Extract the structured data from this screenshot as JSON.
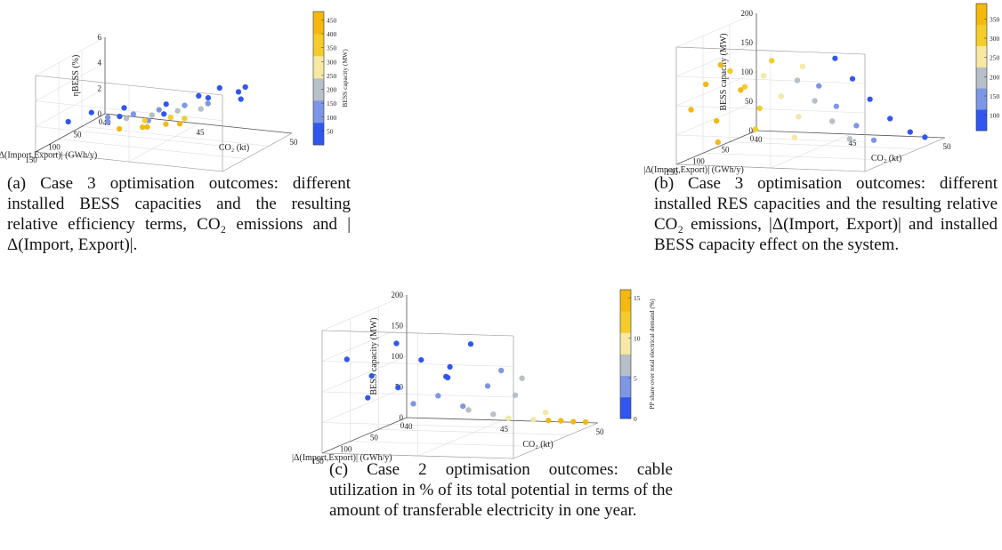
{
  "figure": {
    "captions": {
      "a": "(a) Case 3 optimisation outcomes: different installed BESS capacities and the resulting relative efficiency terms, CO₂ emissions and |Δ(Import, Export)|.",
      "b": "(b) Case 3 optimisation outcomes: different installed RES capacities and the resulting relative CO₂ emissions, |Δ(Import, Export)| and installed BESS capacity effect on the system.",
      "c": "(c) Case 2 optimisation outcomes: cable utilization in % of its total potential in terms of the amount of transferable electricity in one year."
    }
  },
  "palette": {
    "blue": "#2f57f0",
    "midblue": "#7d97e6",
    "grey": "#b7bfc8",
    "lightyellow": "#f7e9a4",
    "yellow": "#f6cc2a",
    "gold": "#f4b90c"
  },
  "chart_data": [
    {
      "id": "a",
      "type": "scatter",
      "dimensions": 3,
      "xlabel": "CO₂ (kt)",
      "ylabel": "|Δ(Import,Export)| (GWh/y)",
      "zlabel": "ηBESS (%)",
      "x_ticks": [
        "40",
        "45",
        "50"
      ],
      "y_ticks": [
        "0",
        "50",
        "100",
        "150"
      ],
      "z_ticks": [
        "0",
        "2",
        "4",
        "6"
      ],
      "xlim": [
        40,
        50
      ],
      "ylim": [
        0,
        150
      ],
      "zlim": [
        0,
        6
      ],
      "colorbar": {
        "label": "BESS capacity (MW)",
        "ticks": [
          "50",
          "100",
          "150",
          "200",
          "250",
          "300",
          "350",
          "400",
          "450"
        ],
        "range": [
          0,
          480
        ]
      },
      "groups": [
        {
          "color_value": 40,
          "points": [
            [
              42.0,
              110,
              2.6
            ],
            [
              43.5,
              100,
              3.0
            ],
            [
              45.5,
              90,
              3.4
            ],
            [
              47.5,
              80,
              4.0
            ],
            [
              49.0,
              75,
              4.6
            ],
            [
              44.0,
              130,
              3.0
            ],
            [
              46.5,
              60,
              3.6
            ],
            [
              48.5,
              40,
              4.2
            ],
            [
              41.5,
              140,
              2.4
            ],
            [
              46.0,
              115,
              3.2
            ],
            [
              49.5,
              90,
              4.4
            ],
            [
              47.0,
              35,
              3.8
            ]
          ]
        },
        {
          "color_value": 120,
          "points": [
            [
              42.5,
              95,
              2.0
            ],
            [
              43.5,
              80,
              2.1
            ],
            [
              44.5,
              65,
              2.3
            ],
            [
              45.5,
              50,
              2.5
            ],
            [
              46.5,
              40,
              2.6
            ],
            [
              43.0,
              115,
              2.1
            ],
            [
              44.8,
              100,
              2.2
            ]
          ]
        },
        {
          "color_value": 190,
          "points": [
            [
              43.0,
              75,
              1.6
            ],
            [
              44.0,
              60,
              1.7
            ],
            [
              45.0,
              45,
              1.9
            ],
            [
              46.0,
              35,
              2.0
            ]
          ]
        },
        {
          "color_value": 320,
          "points": [
            [
              43.5,
              55,
              1.1
            ],
            [
              44.5,
              40,
              1.2
            ],
            [
              45.0,
              30,
              1.0
            ]
          ]
        },
        {
          "color_value": 440,
          "points": [
            [
              42.5,
              70,
              0.6
            ],
            [
              43.5,
              50,
              0.5
            ],
            [
              44.0,
              30,
              0.4
            ],
            [
              44.5,
              20,
              0.3
            ],
            [
              43.0,
              40,
              0.2
            ]
          ]
        }
      ]
    },
    {
      "id": "b",
      "type": "scatter",
      "dimensions": 3,
      "xlabel": "CO₂ (kt)",
      "ylabel": "|Δ(Import,Export)| (GWh/y)",
      "zlabel": "BESS capacity (MW)",
      "x_ticks": [
        "40",
        "45",
        "50"
      ],
      "y_ticks": [
        "0",
        "50",
        "100",
        "150"
      ],
      "z_ticks": [
        "0",
        "50",
        "100",
        "150",
        "200"
      ],
      "xlim": [
        40,
        50
      ],
      "ylim": [
        0,
        150
      ],
      "zlim": [
        0,
        200
      ],
      "colorbar": {
        "label": "RES capacity (MW)",
        "ticks": [
          "100",
          "150",
          "200",
          "250",
          "300",
          "350"
        ],
        "range": [
          60,
          390
        ]
      },
      "groups": [
        {
          "color_value": 370,
          "points": [
            [
              40.5,
              140,
              90
            ],
            [
              41.0,
              130,
              130
            ],
            [
              41.5,
              120,
              160
            ],
            [
              41.0,
              110,
              60
            ],
            [
              42.0,
              100,
              110
            ],
            [
              41.5,
              125,
              30
            ]
          ]
        },
        {
          "color_value": 320,
          "points": [
            [
              42.0,
              120,
              150
            ],
            [
              42.5,
              110,
              120
            ],
            [
              43.0,
              100,
              80
            ],
            [
              42.5,
              90,
              40
            ],
            [
              43.5,
              95,
              160
            ]
          ]
        },
        {
          "color_value": 260,
          "points": [
            [
              43.5,
              110,
              140
            ],
            [
              44.0,
              95,
              100
            ],
            [
              44.5,
              80,
              60
            ],
            [
              44.0,
              70,
              20
            ],
            [
              45.0,
              90,
              150
            ]
          ]
        },
        {
          "color_value": 190,
          "points": [
            [
              45.0,
              100,
              130
            ],
            [
              45.5,
              85,
              90
            ],
            [
              46.0,
              70,
              50
            ],
            [
              46.5,
              55,
              15
            ]
          ]
        },
        {
          "color_value": 150,
          "points": [
            [
              46.0,
              95,
              120
            ],
            [
              46.5,
              80,
              80
            ],
            [
              47.0,
              60,
              40
            ],
            [
              47.5,
              45,
              10
            ]
          ]
        },
        {
          "color_value": 90,
          "points": [
            [
              47.0,
              100,
              170
            ],
            [
              47.5,
              85,
              130
            ],
            [
              48.0,
              70,
              90
            ],
            [
              48.5,
              50,
              50
            ],
            [
              49.0,
              30,
              20
            ],
            [
              49.5,
              20,
              8
            ]
          ]
        }
      ]
    },
    {
      "id": "c",
      "type": "scatter",
      "dimensions": 3,
      "xlabel": "CO₂ (kt)",
      "ylabel": "|Δ(Import,Export)| (GWh/y)",
      "zlabel": "BESS capacity (MW)",
      "x_ticks": [
        "40",
        "45",
        "50"
      ],
      "y_ticks": [
        "0",
        "50",
        "100",
        "150"
      ],
      "z_ticks": [
        "0",
        "50",
        "100",
        "150",
        "200"
      ],
      "xlim": [
        40,
        50
      ],
      "ylim": [
        0,
        150
      ],
      "zlim": [
        0,
        200
      ],
      "colorbar": {
        "label": "PP share over total electrical demand (%)",
        "ticks": [
          "0",
          "5",
          "10",
          "15"
        ],
        "range": [
          0,
          16
        ]
      },
      "groups": [
        {
          "color_value": 1,
          "points": [
            [
              41.0,
              140,
              150
            ],
            [
              42.0,
              130,
              120
            ],
            [
              43.0,
              120,
              170
            ],
            [
              44.0,
              110,
              140
            ],
            [
              45.0,
              100,
              110
            ],
            [
              46.0,
              90,
              160
            ],
            [
              42.5,
              100,
              90
            ],
            [
              44.5,
              80,
              100
            ],
            [
              41.5,
              120,
              80
            ],
            [
              45.5,
              110,
              130
            ]
          ]
        },
        {
          "color_value": 4,
          "points": [
            [
              43.0,
              90,
              60
            ],
            [
              44.0,
              80,
              70
            ],
            [
              45.0,
              70,
              50
            ],
            [
              46.0,
              60,
              80
            ],
            [
              47.0,
              70,
              110
            ]
          ]
        },
        {
          "color_value": 6,
          "points": [
            [
              45.0,
              60,
              40
            ],
            [
              46.0,
              50,
              30
            ],
            [
              47.0,
              45,
              60
            ],
            [
              47.5,
              50,
              90
            ]
          ]
        },
        {
          "color_value": 10,
          "points": [
            [
              46.5,
              40,
              20
            ],
            [
              47.5,
              30,
              15
            ],
            [
              48.0,
              25,
              25
            ]
          ]
        },
        {
          "color_value": 14,
          "points": [
            [
              48.5,
              15,
              8
            ],
            [
              49.0,
              10,
              5
            ],
            [
              49.5,
              5,
              3
            ],
            [
              48.0,
              20,
              10
            ]
          ]
        }
      ]
    }
  ]
}
